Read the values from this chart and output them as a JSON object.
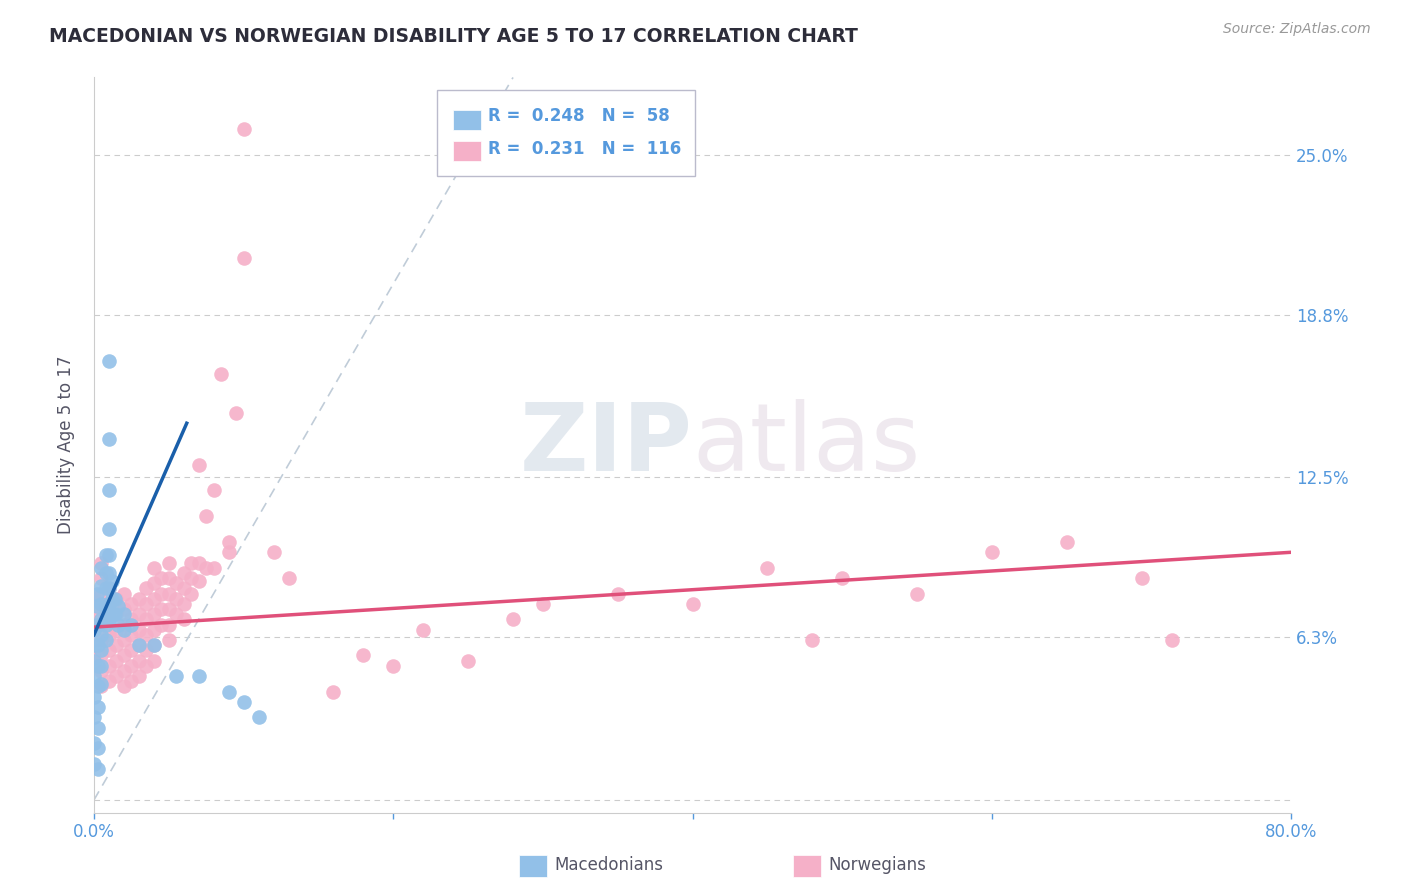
{
  "title": "MACEDONIAN VS NORWEGIAN DISABILITY AGE 5 TO 17 CORRELATION CHART",
  "source": "Source: ZipAtlas.com",
  "ylabel": "Disability Age 5 to 17",
  "xlim": [
    0.0,
    0.8
  ],
  "ylim": [
    -0.005,
    0.28
  ],
  "yticks": [
    0.0,
    0.063,
    0.125,
    0.188,
    0.25
  ],
  "yticklabels": [
    "",
    "6.3%",
    "12.5%",
    "18.8%",
    "25.0%"
  ],
  "grid_color": "#cccccc",
  "background_color": "#ffffff",
  "watermark_zip": "ZIP",
  "watermark_atlas": "atlas",
  "legend_mac": "Macedonians",
  "legend_nor": "Norwegians",
  "r_mac": "0.248",
  "n_mac": "58",
  "r_nor": "0.231",
  "n_nor": "116",
  "mac_color": "#92c0e8",
  "nor_color": "#f5b0c8",
  "mac_line_color": "#1a5faa",
  "nor_line_color": "#e0507a",
  "diagonal_color": "#c0ccd8",
  "title_color": "#2d2d3a",
  "right_tick_color": "#5599dd",
  "mac_scatter": [
    [
      0.0,
      0.066
    ],
    [
      0.0,
      0.06
    ],
    [
      0.0,
      0.054
    ],
    [
      0.0,
      0.048
    ],
    [
      0.0,
      0.04
    ],
    [
      0.0,
      0.032
    ],
    [
      0.0,
      0.022
    ],
    [
      0.0,
      0.014
    ],
    [
      0.002,
      0.08
    ],
    [
      0.002,
      0.075
    ],
    [
      0.002,
      0.068
    ],
    [
      0.003,
      0.06
    ],
    [
      0.003,
      0.052
    ],
    [
      0.003,
      0.044
    ],
    [
      0.003,
      0.036
    ],
    [
      0.003,
      0.028
    ],
    [
      0.003,
      0.02
    ],
    [
      0.003,
      0.012
    ],
    [
      0.005,
      0.09
    ],
    [
      0.005,
      0.083
    ],
    [
      0.005,
      0.076
    ],
    [
      0.005,
      0.07
    ],
    [
      0.005,
      0.064
    ],
    [
      0.005,
      0.058
    ],
    [
      0.005,
      0.052
    ],
    [
      0.005,
      0.045
    ],
    [
      0.008,
      0.095
    ],
    [
      0.008,
      0.088
    ],
    [
      0.008,
      0.082
    ],
    [
      0.008,
      0.075
    ],
    [
      0.008,
      0.068
    ],
    [
      0.008,
      0.062
    ],
    [
      0.01,
      0.17
    ],
    [
      0.01,
      0.14
    ],
    [
      0.01,
      0.12
    ],
    [
      0.01,
      0.105
    ],
    [
      0.01,
      0.095
    ],
    [
      0.01,
      0.088
    ],
    [
      0.01,
      0.082
    ],
    [
      0.01,
      0.076
    ],
    [
      0.01,
      0.07
    ],
    [
      0.012,
      0.085
    ],
    [
      0.012,
      0.078
    ],
    [
      0.012,
      0.072
    ],
    [
      0.014,
      0.078
    ],
    [
      0.014,
      0.072
    ],
    [
      0.016,
      0.075
    ],
    [
      0.016,
      0.068
    ],
    [
      0.02,
      0.072
    ],
    [
      0.02,
      0.066
    ],
    [
      0.025,
      0.068
    ],
    [
      0.03,
      0.06
    ],
    [
      0.04,
      0.06
    ],
    [
      0.055,
      0.048
    ],
    [
      0.07,
      0.048
    ],
    [
      0.09,
      0.042
    ],
    [
      0.1,
      0.038
    ],
    [
      0.11,
      0.032
    ]
  ],
  "nor_scatter": [
    [
      0.0,
      0.078
    ],
    [
      0.0,
      0.07
    ],
    [
      0.0,
      0.062
    ],
    [
      0.0,
      0.055
    ],
    [
      0.005,
      0.092
    ],
    [
      0.005,
      0.086
    ],
    [
      0.005,
      0.08
    ],
    [
      0.005,
      0.074
    ],
    [
      0.005,
      0.068
    ],
    [
      0.005,
      0.062
    ],
    [
      0.005,
      0.056
    ],
    [
      0.005,
      0.05
    ],
    [
      0.005,
      0.044
    ],
    [
      0.01,
      0.082
    ],
    [
      0.01,
      0.076
    ],
    [
      0.01,
      0.07
    ],
    [
      0.01,
      0.064
    ],
    [
      0.01,
      0.058
    ],
    [
      0.01,
      0.052
    ],
    [
      0.01,
      0.046
    ],
    [
      0.015,
      0.078
    ],
    [
      0.015,
      0.072
    ],
    [
      0.015,
      0.066
    ],
    [
      0.015,
      0.06
    ],
    [
      0.015,
      0.054
    ],
    [
      0.015,
      0.048
    ],
    [
      0.02,
      0.08
    ],
    [
      0.02,
      0.074
    ],
    [
      0.02,
      0.068
    ],
    [
      0.02,
      0.062
    ],
    [
      0.02,
      0.056
    ],
    [
      0.02,
      0.05
    ],
    [
      0.02,
      0.044
    ],
    [
      0.025,
      0.076
    ],
    [
      0.025,
      0.07
    ],
    [
      0.025,
      0.064
    ],
    [
      0.025,
      0.058
    ],
    [
      0.025,
      0.052
    ],
    [
      0.025,
      0.046
    ],
    [
      0.03,
      0.078
    ],
    [
      0.03,
      0.072
    ],
    [
      0.03,
      0.066
    ],
    [
      0.03,
      0.06
    ],
    [
      0.03,
      0.054
    ],
    [
      0.03,
      0.048
    ],
    [
      0.035,
      0.082
    ],
    [
      0.035,
      0.076
    ],
    [
      0.035,
      0.07
    ],
    [
      0.035,
      0.064
    ],
    [
      0.035,
      0.058
    ],
    [
      0.035,
      0.052
    ],
    [
      0.04,
      0.09
    ],
    [
      0.04,
      0.084
    ],
    [
      0.04,
      0.078
    ],
    [
      0.04,
      0.072
    ],
    [
      0.04,
      0.066
    ],
    [
      0.04,
      0.06
    ],
    [
      0.04,
      0.054
    ],
    [
      0.045,
      0.086
    ],
    [
      0.045,
      0.08
    ],
    [
      0.045,
      0.074
    ],
    [
      0.045,
      0.068
    ],
    [
      0.05,
      0.092
    ],
    [
      0.05,
      0.086
    ],
    [
      0.05,
      0.08
    ],
    [
      0.05,
      0.074
    ],
    [
      0.05,
      0.068
    ],
    [
      0.05,
      0.062
    ],
    [
      0.055,
      0.084
    ],
    [
      0.055,
      0.078
    ],
    [
      0.055,
      0.072
    ],
    [
      0.06,
      0.088
    ],
    [
      0.06,
      0.082
    ],
    [
      0.06,
      0.076
    ],
    [
      0.06,
      0.07
    ],
    [
      0.065,
      0.092
    ],
    [
      0.065,
      0.086
    ],
    [
      0.065,
      0.08
    ],
    [
      0.07,
      0.13
    ],
    [
      0.07,
      0.092
    ],
    [
      0.07,
      0.085
    ],
    [
      0.075,
      0.11
    ],
    [
      0.075,
      0.09
    ],
    [
      0.08,
      0.12
    ],
    [
      0.08,
      0.09
    ],
    [
      0.085,
      0.165
    ],
    [
      0.09,
      0.1
    ],
    [
      0.09,
      0.096
    ],
    [
      0.095,
      0.15
    ],
    [
      0.1,
      0.26
    ],
    [
      0.1,
      0.21
    ],
    [
      0.12,
      0.096
    ],
    [
      0.13,
      0.086
    ],
    [
      0.16,
      0.042
    ],
    [
      0.18,
      0.056
    ],
    [
      0.2,
      0.052
    ],
    [
      0.22,
      0.066
    ],
    [
      0.25,
      0.054
    ],
    [
      0.28,
      0.07
    ],
    [
      0.3,
      0.076
    ],
    [
      0.35,
      0.08
    ],
    [
      0.4,
      0.076
    ],
    [
      0.45,
      0.09
    ],
    [
      0.48,
      0.062
    ],
    [
      0.5,
      0.086
    ],
    [
      0.55,
      0.08
    ],
    [
      0.6,
      0.096
    ],
    [
      0.65,
      0.1
    ],
    [
      0.7,
      0.086
    ],
    [
      0.72,
      0.062
    ]
  ],
  "nor_line_x": [
    0.0,
    0.8
  ],
  "nor_line_y": [
    0.067,
    0.096
  ],
  "mac_line_x": [
    0.0,
    0.062
  ],
  "mac_line_y": [
    0.064,
    0.146
  ]
}
